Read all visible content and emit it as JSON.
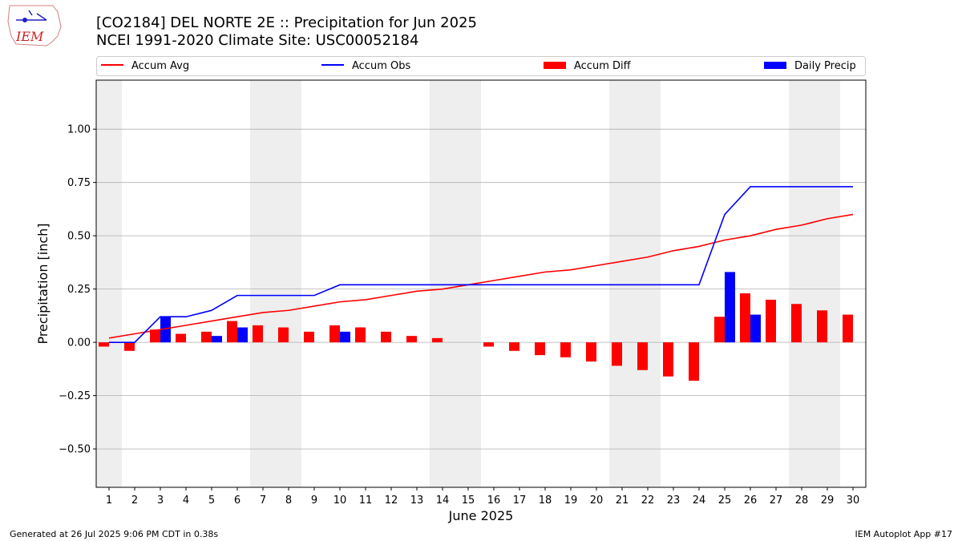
{
  "title_line1": "[CO2184] DEL NORTE 2E :: Precipitation for Jun 2025",
  "title_line2": "NCEI 1991-2020 Climate Site: USC00052184",
  "logo_text": "IEM",
  "footer_left": "Generated at 26 Jul 2025 9:06 PM CDT in 0.38s",
  "footer_right": "IEM Autoplot App #17",
  "colors": {
    "avg": "#ff0000",
    "obs": "#0000ff",
    "diff": "#ff0000",
    "daily": "#0000ff",
    "weekend_band": "#eeeeee",
    "grid": "#b0b0b0"
  },
  "chart_data": {
    "type": "bar",
    "xlabel": "June 2025",
    "ylabel": "Precipitation [inch]",
    "ylim": [
      -0.68,
      1.23
    ],
    "yticks": [
      "−0.50",
      "−0.25",
      "0.00",
      "0.25",
      "0.50",
      "0.75",
      "1.00"
    ],
    "ytick_values": [
      -0.5,
      -0.25,
      0,
      0.25,
      0.5,
      0.75,
      1.0
    ],
    "categories": [
      "1",
      "2",
      "3",
      "4",
      "5",
      "6",
      "7",
      "8",
      "9",
      "10",
      "11",
      "12",
      "13",
      "14",
      "15",
      "16",
      "17",
      "18",
      "19",
      "20",
      "21",
      "22",
      "23",
      "24",
      "25",
      "26",
      "27",
      "28",
      "29",
      "30"
    ],
    "shaded_days": [
      1,
      7,
      8,
      14,
      15,
      21,
      22,
      28,
      29
    ],
    "legend_position": "top",
    "grid": "horizontal",
    "series": [
      {
        "name": "Accum Avg",
        "kind": "line",
        "values": [
          0.02,
          0.04,
          0.06,
          0.08,
          0.1,
          0.12,
          0.14,
          0.15,
          0.17,
          0.19,
          0.2,
          0.22,
          0.24,
          0.25,
          0.27,
          0.29,
          0.31,
          0.33,
          0.34,
          0.36,
          0.38,
          0.4,
          0.43,
          0.45,
          0.48,
          0.5,
          0.53,
          0.55,
          0.58,
          0.6
        ]
      },
      {
        "name": "Accum Obs",
        "kind": "line",
        "values": [
          0.0,
          0.0,
          0.12,
          0.12,
          0.15,
          0.22,
          0.22,
          0.22,
          0.22,
          0.27,
          0.27,
          0.27,
          0.27,
          0.27,
          0.27,
          0.27,
          0.27,
          0.27,
          0.27,
          0.27,
          0.27,
          0.27,
          0.27,
          0.27,
          0.6,
          0.73,
          0.73,
          0.73,
          0.73,
          0.73
        ]
      },
      {
        "name": "Accum Diff",
        "kind": "bar",
        "values": [
          -0.02,
          -0.04,
          0.06,
          0.04,
          0.05,
          0.1,
          0.08,
          0.07,
          0.05,
          0.08,
          0.07,
          0.05,
          0.03,
          0.02,
          0.0,
          -0.02,
          -0.04,
          -0.06,
          -0.07,
          -0.09,
          -0.11,
          -0.13,
          -0.16,
          -0.18,
          0.12,
          0.23,
          0.2,
          0.18,
          0.15,
          0.13
        ]
      },
      {
        "name": "Daily Precip",
        "kind": "bar",
        "values": [
          0,
          0,
          0.12,
          0,
          0.03,
          0.07,
          0,
          0,
          0,
          0.05,
          0,
          0,
          0,
          0,
          0,
          0,
          0,
          0,
          0,
          0,
          0,
          0,
          0,
          0,
          0.33,
          0.13,
          0,
          0,
          0,
          0
        ]
      }
    ]
  }
}
